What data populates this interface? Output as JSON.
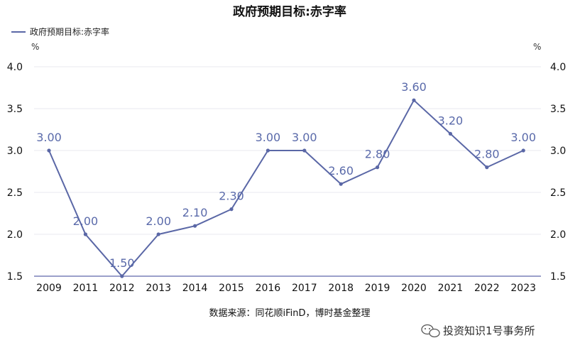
{
  "chart_data": {
    "type": "line",
    "title": "政府预期目标:赤字率",
    "legend": {
      "placement": "top-left",
      "entries": [
        "政府预期目标:赤字率"
      ]
    },
    "units": {
      "left": "%",
      "right": "%"
    },
    "categories": [
      "2009",
      "2011",
      "2012",
      "2013",
      "2014",
      "2015",
      "2016",
      "2017",
      "2018",
      "2019",
      "2020",
      "2021",
      "2022",
      "2023"
    ],
    "series": [
      {
        "name": "政府预期目标:赤字率",
        "values": [
          3.0,
          2.0,
          1.5,
          2.0,
          2.1,
          2.3,
          3.0,
          3.0,
          2.6,
          2.8,
          3.6,
          3.2,
          2.8,
          3.0
        ],
        "labels": [
          "3.00",
          "2.00",
          "1.50",
          "2.00",
          "2.10",
          "2.30",
          "3.00",
          "3.00",
          "2.60",
          "2.80",
          "3.60",
          "3.20",
          "2.80",
          "3.00"
        ],
        "color": "#5a67a6"
      }
    ],
    "ylim": [
      1.5,
      4.0
    ],
    "yticks": [
      "1.5",
      "2.0",
      "2.5",
      "3.0",
      "3.5",
      "4.0"
    ],
    "right_yticks": [
      "1.5",
      "2.0",
      "2.5",
      "3.0",
      "3.5",
      "4.0"
    ],
    "grid": true,
    "source": "数据来源：同花顺iFinD，博时基金整理"
  },
  "watermark": {
    "text": "投资知识1号事务所",
    "icon": "wechat-icon"
  },
  "colors": {
    "series": "#5a67a6",
    "label": "#5a6aaa",
    "grid": "#e8e8ef",
    "axis": "#7a80b8"
  }
}
